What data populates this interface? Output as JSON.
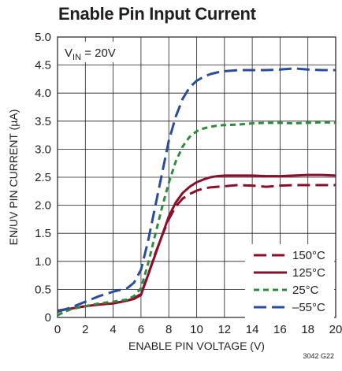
{
  "chart_data": {
    "type": "line",
    "title": "Enable Pin Input Current",
    "xlabel": "ENABLE PIN VOLTAGE (V)",
    "ylabel": "EN/UV PIN CURRENT (µA)",
    "xlim": [
      0,
      20
    ],
    "ylim": [
      0,
      5.0
    ],
    "x_ticks": [
      0,
      2,
      4,
      6,
      8,
      10,
      12,
      14,
      16,
      18,
      20
    ],
    "x_tick_labels": [
      "0",
      "2",
      "4",
      "6",
      "8",
      "10",
      "12",
      "14",
      "16",
      "18",
      "20"
    ],
    "y_ticks": [
      0,
      0.5,
      1.0,
      1.5,
      2.0,
      2.5,
      3.0,
      3.5,
      4.0,
      4.5,
      5.0
    ],
    "y_tick_labels": [
      "0",
      "0.5",
      "1.0",
      "1.5",
      "2.0",
      "2.5",
      "3.0",
      "3.5",
      "4.0",
      "4.5",
      "5.0"
    ],
    "grid": true,
    "legend_position": "bottom-right",
    "annotation": {
      "main": "V",
      "sub": "IN",
      "rest": " = 20V"
    },
    "figure_id": "3042 G22",
    "series": [
      {
        "name": "150°C",
        "color": "#8b0f2a",
        "style": "long-dash",
        "x": [
          0,
          0.5,
          1,
          2,
          3,
          4,
          5,
          5.5,
          6,
          6.5,
          7,
          7.5,
          8,
          8.5,
          9,
          9.5,
          10,
          10.5,
          11,
          12,
          13,
          14,
          15,
          16,
          17,
          18,
          19,
          20
        ],
        "y": [
          0.12,
          0.14,
          0.16,
          0.2,
          0.23,
          0.25,
          0.3,
          0.34,
          0.42,
          0.75,
          1.12,
          1.45,
          1.75,
          1.98,
          2.12,
          2.2,
          2.26,
          2.3,
          2.32,
          2.34,
          2.36,
          2.35,
          2.33,
          2.35,
          2.36,
          2.36,
          2.36,
          2.36
        ]
      },
      {
        "name": "125°C",
        "color": "#8b0f2a",
        "style": "solid",
        "x": [
          0,
          0.5,
          1,
          2,
          3,
          4,
          5,
          5.5,
          6,
          6.5,
          7,
          7.5,
          8,
          8.5,
          9,
          9.5,
          10,
          10.5,
          11,
          11.5,
          12,
          13,
          14,
          15,
          16,
          17,
          18,
          19,
          20
        ],
        "y": [
          0.12,
          0.14,
          0.16,
          0.2,
          0.23,
          0.25,
          0.3,
          0.33,
          0.4,
          0.75,
          1.1,
          1.45,
          1.8,
          2.05,
          2.22,
          2.33,
          2.41,
          2.46,
          2.5,
          2.52,
          2.53,
          2.53,
          2.53,
          2.52,
          2.52,
          2.53,
          2.54,
          2.54,
          2.53
        ]
      },
      {
        "name": "25°C",
        "color": "#2e8b3f",
        "style": "short-dash",
        "x": [
          0,
          0.5,
          1,
          2,
          3,
          4,
          5,
          5.5,
          6,
          6.5,
          7,
          7.5,
          8,
          8.5,
          9,
          9.5,
          10,
          10.5,
          11,
          11.5,
          12,
          13,
          14,
          15,
          16,
          17,
          18,
          19,
          20
        ],
        "y": [
          0.04,
          0.1,
          0.15,
          0.2,
          0.25,
          0.28,
          0.32,
          0.38,
          0.52,
          0.95,
          1.45,
          1.95,
          2.4,
          2.78,
          3.05,
          3.22,
          3.32,
          3.37,
          3.4,
          3.42,
          3.43,
          3.44,
          3.46,
          3.47,
          3.47,
          3.46,
          3.47,
          3.48,
          3.47
        ]
      },
      {
        "name": "–55°C",
        "color": "#2a4d9b",
        "style": "long-dash",
        "x": [
          0,
          0.5,
          1,
          2,
          3,
          4,
          5,
          5.5,
          6,
          6.5,
          7,
          7.5,
          8,
          8.5,
          9,
          9.5,
          10,
          10.5,
          11,
          11.5,
          12,
          12.5,
          13,
          14,
          15,
          16,
          17,
          18,
          19,
          20
        ],
        "y": [
          0.1,
          0.14,
          0.18,
          0.28,
          0.38,
          0.46,
          0.52,
          0.62,
          0.85,
          1.35,
          1.95,
          2.55,
          3.15,
          3.58,
          3.9,
          4.1,
          4.22,
          4.29,
          4.34,
          4.37,
          4.39,
          4.4,
          4.41,
          4.41,
          4.41,
          4.42,
          4.44,
          4.42,
          4.41,
          4.41
        ]
      }
    ]
  }
}
